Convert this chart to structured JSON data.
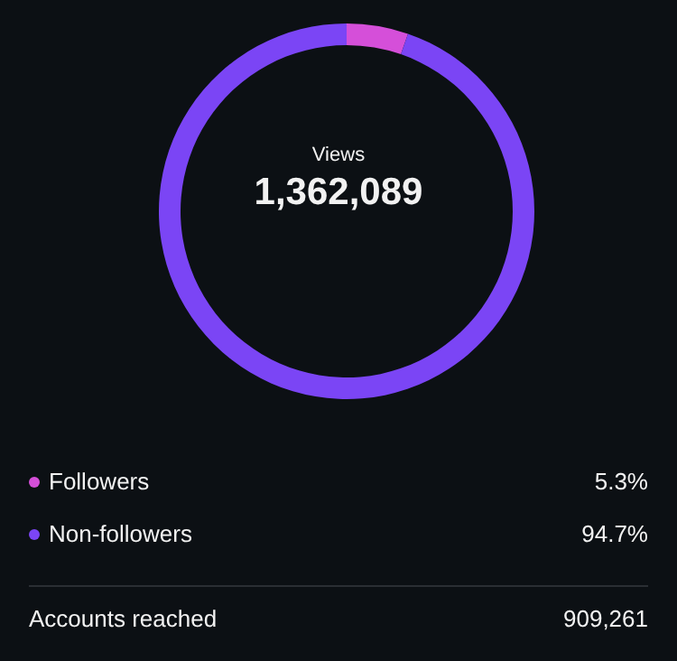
{
  "chart_data": {
    "type": "donut",
    "categories": [
      "Followers",
      "Non-followers"
    ],
    "values": [
      5.3,
      94.7
    ],
    "value_labels": [
      "5.3%",
      "94.7%"
    ],
    "colors": [
      "#d54fd9",
      "#7b45f5"
    ],
    "legend": "bottom",
    "annotations": [
      "Views",
      "1,362,089",
      "Accounts reached",
      "909,261"
    ]
  }
}
